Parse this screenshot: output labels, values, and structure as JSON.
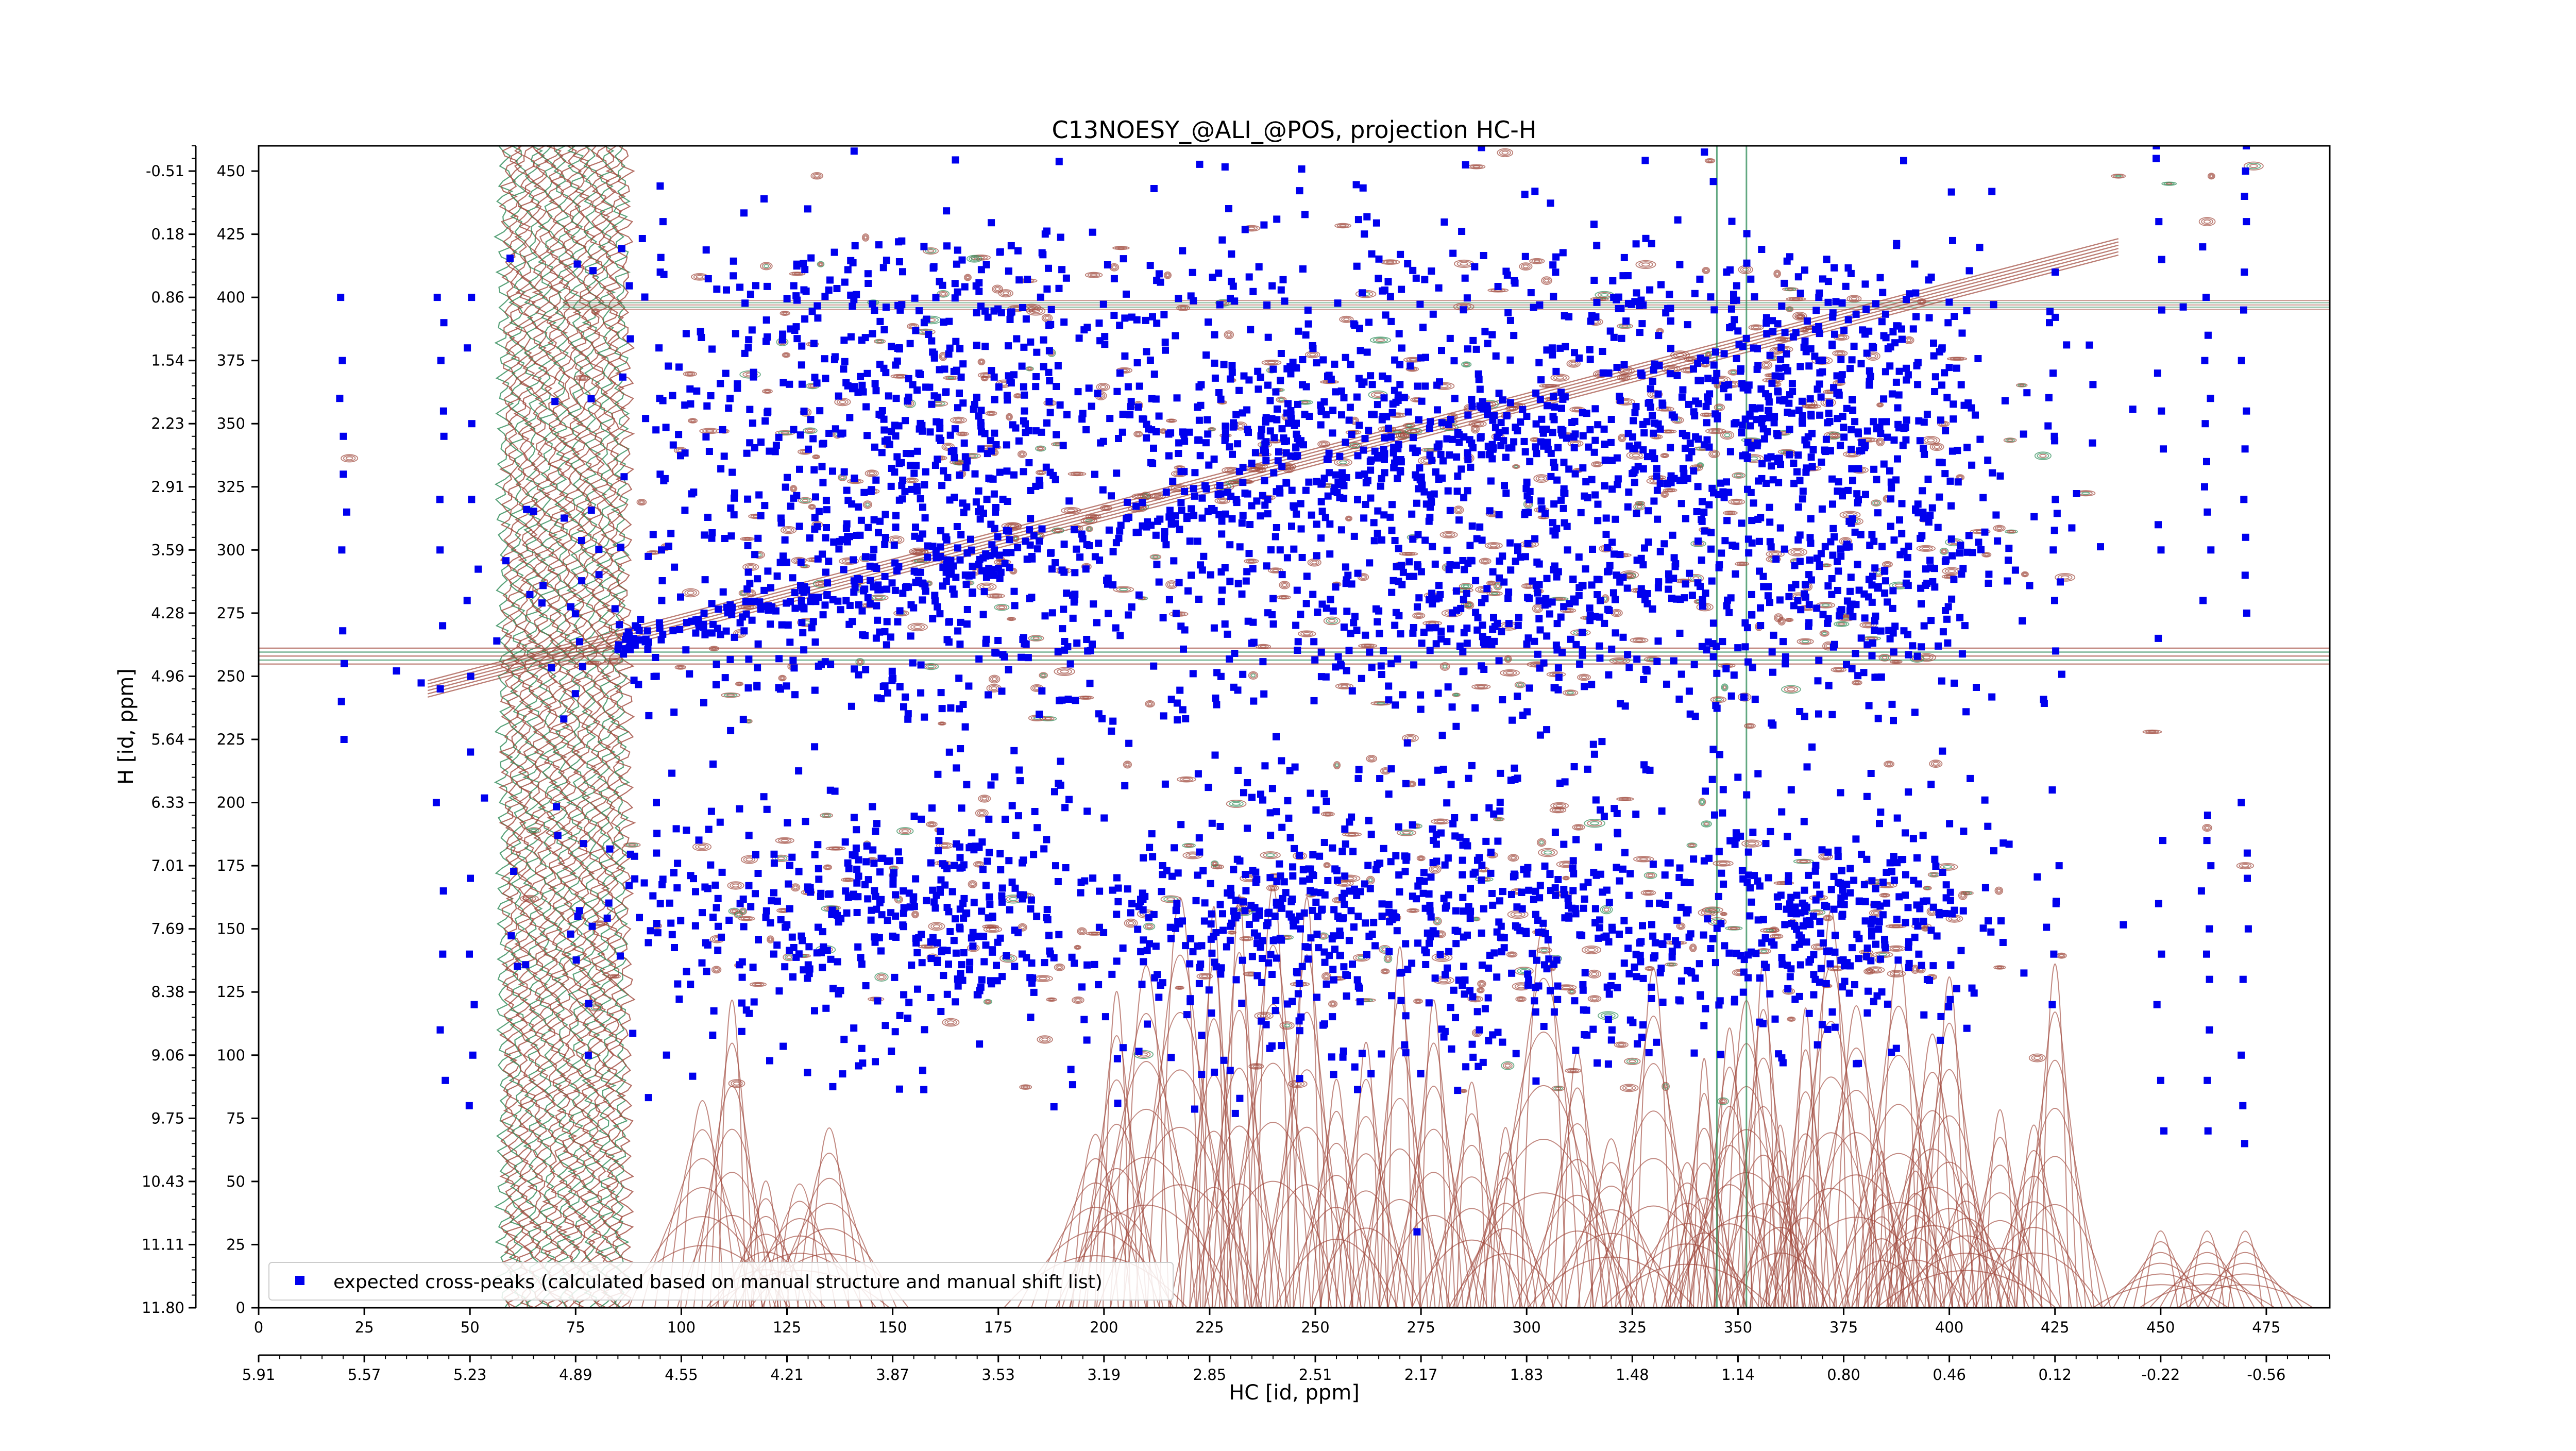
{
  "chart_data": {
    "type": "scatter",
    "title": "C13NOESY_@ALI_@POS, projection HC-H",
    "xlabel": "HC [id, ppm]",
    "ylabel": "H [id, ppm]",
    "xlim": [
      0,
      490
    ],
    "ylim": [
      0,
      460
    ],
    "x_index_ticks": [
      "0",
      "25",
      "50",
      "75",
      "100",
      "125",
      "150",
      "175",
      "200",
      "225",
      "250",
      "275",
      "300",
      "325",
      "350",
      "375",
      "400",
      "425",
      "450",
      "475"
    ],
    "x_ppm_ticks": [
      "5.91",
      "5.57",
      "5.23",
      "4.89",
      "4.55",
      "4.21",
      "3.87",
      "3.53",
      "3.19",
      "2.85",
      "2.51",
      "2.17",
      "1.83",
      "1.48",
      "1.14",
      "0.80",
      "0.46",
      "0.12",
      "-0.22",
      "-0.56"
    ],
    "y_index_ticks": [
      "0",
      "25",
      "50",
      "75",
      "100",
      "125",
      "150",
      "175",
      "200",
      "225",
      "250",
      "275",
      "300",
      "325",
      "350",
      "375",
      "400",
      "425",
      "450"
    ],
    "y_ppm_ticks": [
      "11.80",
      "11.11",
      "10.43",
      "9.75",
      "9.06",
      "8.38",
      "7.69",
      "7.01",
      "6.33",
      "5.64",
      "4.96",
      "4.28",
      "3.59",
      "2.91",
      "2.23",
      "1.54",
      "0.86",
      "0.18",
      "-0.51"
    ],
    "legend": {
      "label": "expected cross-peaks (calculated based on manual structure and manual shift list)",
      "position": "lower-left",
      "marker_color": "#0000ee"
    },
    "colors": {
      "cross_peaks": "#0000ee",
      "positive_contours": "#a0483c",
      "negative_contours": "#2e8b57"
    },
    "series": [
      {
        "name": "expected cross-peaks (calculated based on manual structure and manual shift list)",
        "clusters": [
          {
            "cx": 210,
            "cy": 262,
            "sx": 60,
            "sy": 10,
            "n": 240,
            "diag": 0.37
          },
          {
            "cx": 310,
            "cy": 345,
            "sx": 50,
            "sy": 18,
            "n": 500
          },
          {
            "cx": 155,
            "cy": 355,
            "sx": 30,
            "sy": 25,
            "n": 380
          },
          {
            "cx": 240,
            "cy": 355,
            "sx": 20,
            "sy": 18,
            "n": 140
          },
          {
            "cx": 370,
            "cy": 370,
            "sx": 22,
            "sy": 22,
            "n": 260
          },
          {
            "cx": 150,
            "cy": 290,
            "sx": 38,
            "sy": 22,
            "n": 380
          },
          {
            "cx": 300,
            "cy": 285,
            "sx": 45,
            "sy": 22,
            "n": 500
          },
          {
            "cx": 380,
            "cy": 290,
            "sx": 18,
            "sy": 25,
            "n": 220
          },
          {
            "cx": 150,
            "cy": 155,
            "sx": 35,
            "sy": 22,
            "n": 450
          },
          {
            "cx": 300,
            "cy": 150,
            "sx": 45,
            "sy": 25,
            "n": 600
          },
          {
            "cx": 380,
            "cy": 155,
            "sx": 18,
            "sy": 22,
            "n": 200
          },
          {
            "cx": 240,
            "cy": 155,
            "sx": 20,
            "sy": 20,
            "n": 160
          },
          {
            "cx": 160,
            "cy": 405,
            "sx": 40,
            "sy": 12,
            "n": 130
          },
          {
            "cx": 290,
            "cy": 403,
            "sx": 50,
            "sy": 12,
            "n": 150
          },
          {
            "cx": 150,
            "cy": 240,
            "sx": 50,
            "sy": 10,
            "n": 60
          },
          {
            "cx": 300,
            "cy": 245,
            "sx": 60,
            "sy": 10,
            "n": 60
          },
          {
            "cx": 260,
            "cy": 210,
            "sx": 80,
            "sy": 10,
            "n": 70
          },
          {
            "cx": 220,
            "cy": 95,
            "sx": 80,
            "sy": 8,
            "n": 45
          },
          {
            "cx": 280,
            "cy": 440,
            "sx": 80,
            "sy": 12,
            "n": 35
          }
        ],
        "columns": [
          {
            "x": 20,
            "y": [
              225,
              240,
              255,
              268,
              300,
              315,
              330,
              345,
              360,
              375,
              400
            ]
          },
          {
            "x": 43,
            "y": [
              90,
              110,
              140,
              165,
              200,
              245,
              270,
              300,
              320,
              345,
              355,
              375,
              390,
              400
            ]
          },
          {
            "x": 50,
            "y": [
              80,
              100,
              120,
              140,
              170,
              220,
              250,
              280,
              320,
              350,
              380,
              400
            ]
          },
          {
            "x": 95,
            "y": [
              160,
              180,
              200,
              250,
              280,
              300,
              330,
              360,
              380,
              410,
              430
            ]
          },
          {
            "x": 425,
            "y": [
              120,
              140,
              160,
              175,
              205,
              260,
              280,
              300,
              320,
              345,
              370,
              390,
              410
            ]
          },
          {
            "x": 450,
            "y": [
              70,
              90,
              120,
              140,
              160,
              185,
              265,
              300,
              310,
              340,
              355,
              370,
              395,
              415,
              430,
              455,
              460
            ]
          },
          {
            "x": 461,
            "y": [
              70,
              90,
              110,
              130,
              140,
              150,
              165,
              175,
              185,
              195,
              280,
              300,
              315,
              325,
              335,
              350,
              360,
              375,
              385,
              400,
              420
            ]
          },
          {
            "x": 470,
            "y": [
              65,
              80,
              100,
              130,
              150,
              170,
              180,
              200,
              275,
              290,
              305,
              320,
              340,
              355,
              375,
              395,
              410,
              430,
              440,
              450,
              460
            ]
          }
        ]
      }
    ],
    "grid": false
  }
}
